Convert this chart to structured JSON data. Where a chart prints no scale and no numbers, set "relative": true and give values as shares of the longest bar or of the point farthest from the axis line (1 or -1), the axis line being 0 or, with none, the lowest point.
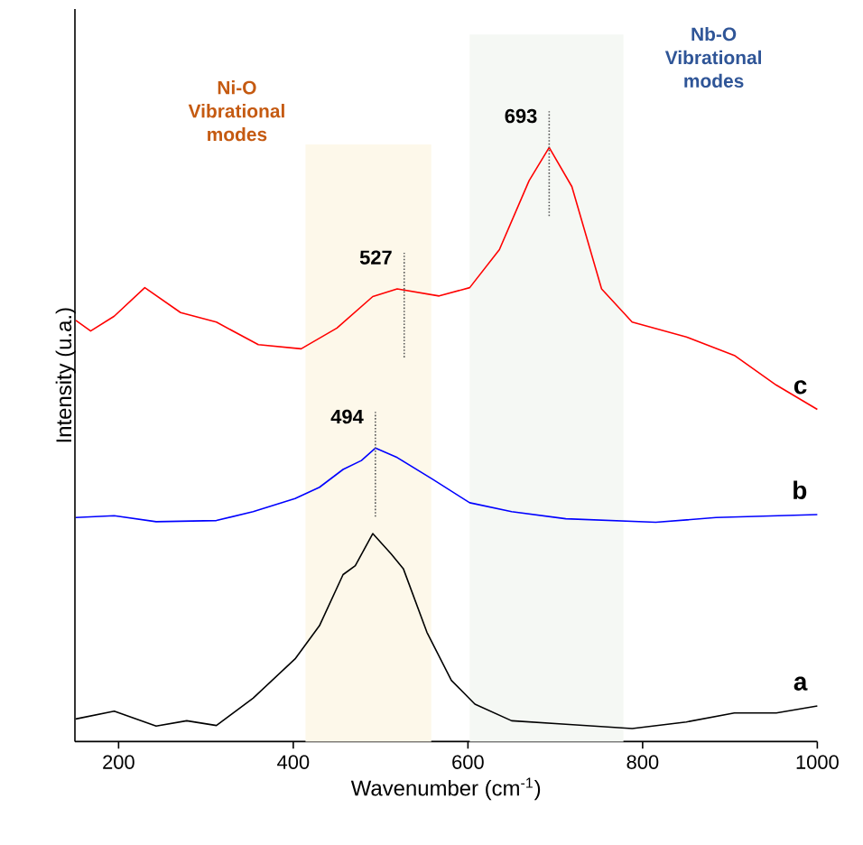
{
  "chart_data": {
    "type": "line",
    "relative": true,
    "xlabel": "Wavenumber (cm$^{-1}$)",
    "ylabel": "Intensity (u.a.)",
    "xlim": [
      150,
      1000
    ],
    "xticks": [
      200,
      400,
      600,
      800,
      1000
    ],
    "marker": "none",
    "line_style": "solid",
    "series": [
      {
        "name": "a",
        "color": "#000000",
        "x": [
          151,
          195,
          243,
          278,
          312,
          354,
          402,
          430,
          457,
          471,
          491,
          512,
          526,
          553,
          581,
          608,
          650,
          712,
          788,
          850,
          905,
          953,
          1000
        ],
        "values": [
          0.038,
          0.051,
          0.026,
          0.035,
          0.027,
          0.073,
          0.139,
          0.195,
          0.281,
          0.296,
          0.35,
          0.316,
          0.291,
          0.184,
          0.103,
          0.063,
          0.035,
          0.029,
          0.022,
          0.033,
          0.048,
          0.048,
          0.06
        ]
      },
      {
        "name": "b",
        "color": "#0000ff",
        "x": [
          151,
          195,
          243,
          312,
          354,
          402,
          430,
          457,
          478,
          494,
          519,
          560,
          602,
          650,
          712,
          815,
          884,
          1000
        ],
        "values": [
          0.377,
          0.38,
          0.37,
          0.372,
          0.387,
          0.409,
          0.428,
          0.458,
          0.473,
          0.494,
          0.478,
          0.441,
          0.402,
          0.387,
          0.375,
          0.369,
          0.377,
          0.382
        ]
      },
      {
        "name": "c",
        "color": "#ff0000",
        "x": [
          151,
          168,
          195,
          230,
          271,
          312,
          360,
          409,
          450,
          491,
          519,
          567,
          602,
          636,
          670,
          693,
          719,
          753,
          788,
          850,
          905,
          953,
          1000
        ],
        "values": [
          0.709,
          0.691,
          0.716,
          0.764,
          0.722,
          0.706,
          0.668,
          0.661,
          0.696,
          0.749,
          0.762,
          0.75,
          0.764,
          0.828,
          0.944,
          1,
          0.934,
          0.762,
          0.706,
          0.681,
          0.65,
          0.6,
          0.559
        ]
      }
    ],
    "bands": [
      {
        "axis": "x",
        "from": 414,
        "to": 558,
        "label": "Ni-O Vibrational modes",
        "color": "#fdf8ea"
      },
      {
        "axis": "x",
        "from": 602,
        "to": 778,
        "label": "Nb-O Vibrational modes",
        "color": "#f5f8f4"
      }
    ],
    "annotations": [
      {
        "text": "494",
        "x": 494,
        "y": 0.494
      },
      {
        "text": "527",
        "x": 527,
        "y": 0.762
      },
      {
        "text": "693",
        "x": 693,
        "y": 1
      }
    ]
  }
}
